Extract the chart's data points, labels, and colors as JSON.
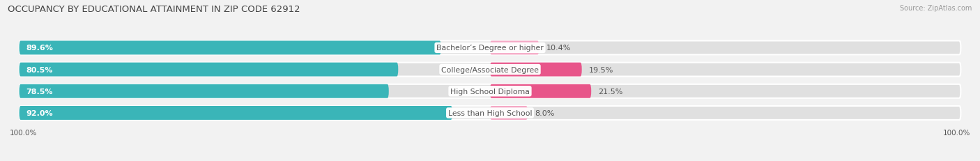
{
  "title": "OCCUPANCY BY EDUCATIONAL ATTAINMENT IN ZIP CODE 62912",
  "source": "Source: ZipAtlas.com",
  "categories": [
    "Less than High School",
    "High School Diploma",
    "College/Associate Degree",
    "Bachelor’s Degree or higher"
  ],
  "owner_values": [
    92.0,
    78.5,
    80.5,
    89.6
  ],
  "renter_values": [
    8.0,
    21.5,
    19.5,
    10.4
  ],
  "owner_color": "#3ab5b8",
  "renter_color_dark": "#e8558a",
  "renter_color_light": "#f5a8c5",
  "background_color": "#f2f2f2",
  "bar_bg_color": "#e0e0e0",
  "label_text_color": "#555555",
  "value_text_color": "#ffffff",
  "cat_text_color": "#555555",
  "title_color": "#444444",
  "source_color": "#999999",
  "x_left_label": "100.0%",
  "x_right_label": "100.0%"
}
